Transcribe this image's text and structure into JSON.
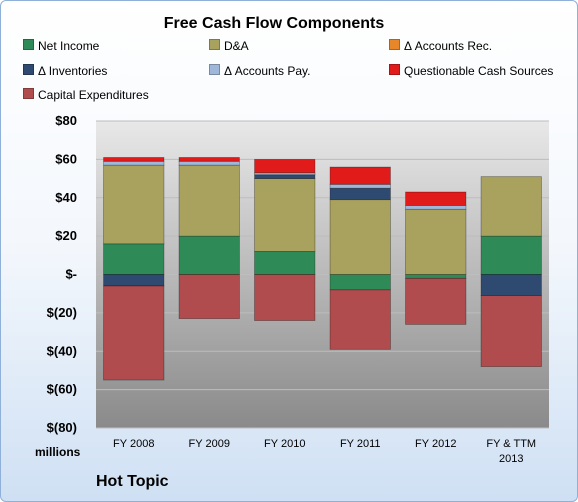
{
  "chart_data": {
    "type": "bar",
    "stacked": true,
    "title": "Free Cash Flow Components",
    "units_label": "millions",
    "footer": "Hot Topic",
    "categories": [
      "FY 2008",
      "FY 2009",
      "FY 2010",
      "FY 2011",
      "FY 2012",
      "FY & TTM\n2013"
    ],
    "ylim": [
      -80,
      80
    ],
    "yticks": [
      80,
      60,
      40,
      20,
      0,
      -20,
      -40,
      -60,
      -80
    ],
    "ytick_labels": [
      "$80",
      "$60",
      "$40",
      "$20",
      "$-",
      "$(20)",
      "$(40)",
      "$(60)",
      "$(80)"
    ],
    "grid": true,
    "legend_position": "top",
    "series": [
      {
        "name": "Net Income",
        "color": "#2e8b57",
        "values": [
          16,
          20,
          12,
          -8,
          -2,
          20
        ]
      },
      {
        "name": "D&A",
        "color": "#a9a25e",
        "values": [
          41,
          37,
          38,
          39,
          34,
          31
        ]
      },
      {
        "name": "Δ Accounts Rec.",
        "color": "#e8862a",
        "values": [
          0,
          0,
          0,
          0,
          0,
          0
        ]
      },
      {
        "name": "Δ Inventories",
        "color": "#2f4a70",
        "values": [
          -6,
          0,
          2,
          6,
          0,
          -11
        ]
      },
      {
        "name": "Δ Accounts Pay.",
        "color": "#9fb8d9",
        "values": [
          2,
          2,
          1,
          2,
          2,
          0
        ]
      },
      {
        "name": "Questionable Cash Sources",
        "color": "#e11a1a",
        "values": [
          2,
          2,
          7,
          9,
          7,
          0
        ]
      },
      {
        "name": "Capital Expenditures",
        "color": "#b04c4e",
        "values": [
          -49,
          -23,
          -24,
          -31,
          -24,
          -37
        ]
      }
    ]
  }
}
